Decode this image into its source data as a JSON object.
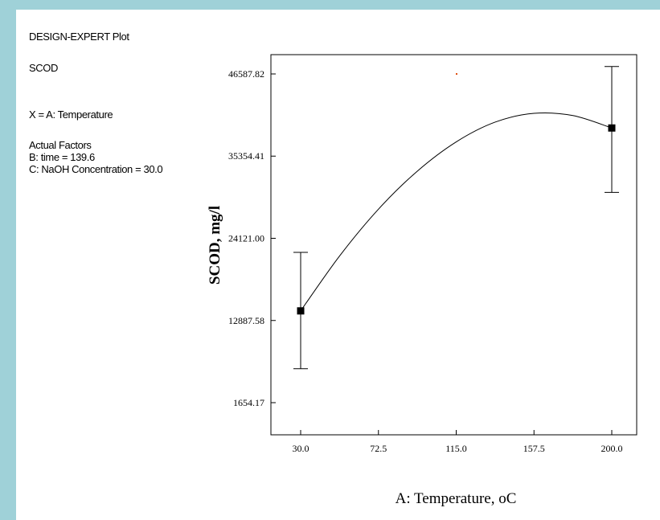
{
  "info": {
    "header": "DESIGN-EXPERT Plot",
    "response": "SCOD",
    "x_factor": "X = A: Temperature",
    "actual_factors_title": "Actual Factors",
    "factor_b": "B: time = 139.6",
    "factor_c": "C: NaOH Concentration = 30.0"
  },
  "colors": {
    "background": "#9fd1d8",
    "plot_line": "#000000",
    "marker_dot": "#e05010"
  },
  "chart_data": {
    "type": "line",
    "title": "",
    "xlabel": "A: Temperature, oC",
    "ylabel": "SCOD, mg/l",
    "xlim": [
      30.0,
      200.0
    ],
    "ylim": [
      1654.17,
      46587.82
    ],
    "x_ticks": [
      30.0,
      72.5,
      115.0,
      157.5,
      200.0
    ],
    "x_tick_labels": [
      "30.0",
      "72.5",
      "115.0",
      "157.5",
      "200.0"
    ],
    "y_ticks": [
      1654.17,
      12887.58,
      24121.0,
      35354.41,
      46587.82
    ],
    "y_tick_labels": [
      "1654.17",
      "12887.58",
      "24121.00",
      "35354.41",
      "46587.82"
    ],
    "curve": {
      "x": [
        30.0,
        51.25,
        72.5,
        93.75,
        115.0,
        136.25,
        157.5,
        178.75,
        200.0
      ],
      "y": [
        14200,
        21700,
        28100,
        33300,
        37300,
        40000,
        41200,
        40900,
        39200
      ]
    },
    "design_points": {
      "x": [
        30.0,
        200.0
      ],
      "y": [
        14200,
        39200
      ],
      "error_low": [
        6300,
        30400
      ],
      "error_high": [
        22200,
        47600
      ]
    },
    "grid": false,
    "legend": "none"
  }
}
